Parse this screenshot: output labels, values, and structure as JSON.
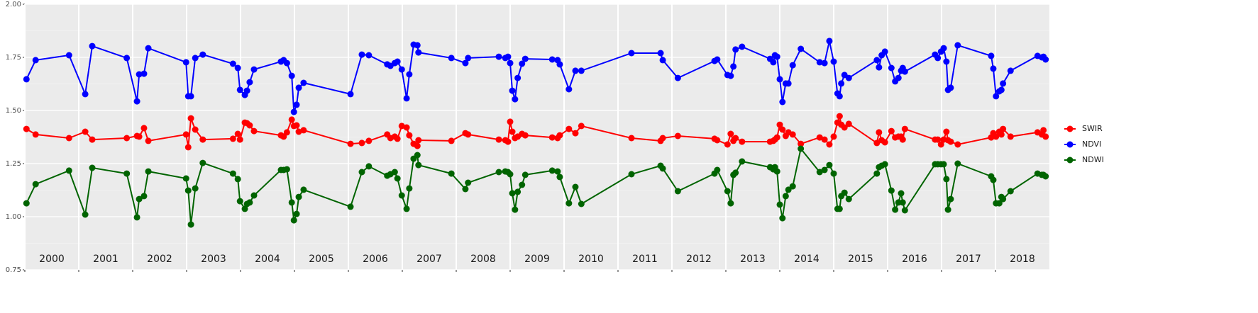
{
  "chart_data": {
    "type": "line",
    "x": [
      2000.03,
      2000.2,
      2000.82,
      2001.12,
      2001.25,
      2001.89,
      2002.08,
      2002.12,
      2002.21,
      2002.29,
      2002.99,
      2003.03,
      2003.08,
      2003.16,
      2003.3,
      2003.86,
      2003.95,
      2003.99,
      2004.08,
      2004.12,
      2004.17,
      2004.25,
      2004.75,
      2004.8,
      2004.86,
      2004.95,
      2004.99,
      2005.04,
      2005.08,
      2005.17,
      2006.04,
      2006.25,
      2006.38,
      2006.72,
      2006.78,
      2006.86,
      2006.91,
      2006.99,
      2007.08,
      2007.13,
      2007.21,
      2007.28,
      2007.3,
      2007.91,
      2008.17,
      2008.22,
      2008.79,
      2008.91,
      2008.96,
      2009.0,
      2009.04,
      2009.09,
      2009.14,
      2009.22,
      2009.28,
      2009.78,
      2009.88,
      2009.92,
      2010.09,
      2010.21,
      2010.32,
      2011.25,
      2011.79,
      2011.83,
      2012.11,
      2012.79,
      2012.84,
      2013.03,
      2013.09,
      2013.14,
      2013.18,
      2013.3,
      2013.82,
      2013.88,
      2013.91,
      2013.95,
      2014.0,
      2014.05,
      2014.11,
      2014.16,
      2014.24,
      2014.39,
      2014.74,
      2014.83,
      2014.92,
      2015.0,
      2015.07,
      2015.11,
      2015.14,
      2015.2,
      2015.28,
      2015.8,
      2015.84,
      2015.89,
      2015.95,
      2016.07,
      2016.14,
      2016.2,
      2016.25,
      2016.28,
      2016.32,
      2016.88,
      2016.93,
      2016.99,
      2017.04,
      2017.09,
      2017.12,
      2017.17,
      2017.3,
      2017.92,
      2017.96,
      2018.01,
      2018.07,
      2018.11,
      2018.14,
      2018.28,
      2018.78,
      2018.86,
      2018.89,
      2018.93
    ],
    "series": [
      {
        "name": "SWIR",
        "color": "#ff0000",
        "values": [
          1.413,
          1.387,
          1.37,
          1.4,
          1.363,
          1.37,
          1.38,
          1.377,
          1.417,
          1.357,
          1.387,
          1.327,
          1.463,
          1.41,
          1.363,
          1.367,
          1.39,
          1.363,
          1.443,
          1.44,
          1.43,
          1.403,
          1.383,
          1.377,
          1.397,
          1.457,
          1.427,
          1.43,
          1.4,
          1.407,
          1.343,
          1.347,
          1.357,
          1.387,
          1.37,
          1.377,
          1.367,
          1.427,
          1.42,
          1.383,
          1.343,
          1.333,
          1.36,
          1.357,
          1.393,
          1.387,
          1.363,
          1.36,
          1.353,
          1.447,
          1.4,
          1.37,
          1.377,
          1.39,
          1.383,
          1.373,
          1.37,
          1.383,
          1.413,
          1.393,
          1.427,
          1.37,
          1.357,
          1.37,
          1.38,
          1.367,
          1.36,
          1.34,
          1.39,
          1.357,
          1.37,
          1.353,
          1.353,
          1.357,
          1.363,
          1.373,
          1.433,
          1.41,
          1.38,
          1.397,
          1.387,
          1.343,
          1.373,
          1.363,
          1.34,
          1.377,
          1.443,
          1.473,
          1.433,
          1.42,
          1.437,
          1.347,
          1.397,
          1.36,
          1.35,
          1.403,
          1.373,
          1.377,
          1.377,
          1.363,
          1.413,
          1.363,
          1.363,
          1.34,
          1.363,
          1.4,
          1.36,
          1.353,
          1.34,
          1.373,
          1.393,
          1.377,
          1.4,
          1.387,
          1.413,
          1.377,
          1.397,
          1.387,
          1.407,
          1.377
        ]
      },
      {
        "name": "NDVI",
        "color": "#0000ff",
        "values": [
          1.647,
          1.737,
          1.76,
          1.577,
          1.803,
          1.747,
          1.543,
          1.67,
          1.673,
          1.793,
          1.727,
          1.567,
          1.567,
          1.747,
          1.763,
          1.72,
          1.7,
          1.597,
          1.573,
          1.593,
          1.633,
          1.693,
          1.73,
          1.737,
          1.723,
          1.663,
          1.493,
          1.527,
          1.607,
          1.63,
          1.577,
          1.763,
          1.76,
          1.717,
          1.71,
          1.723,
          1.73,
          1.693,
          1.557,
          1.67,
          1.81,
          1.807,
          1.773,
          1.747,
          1.723,
          1.747,
          1.753,
          1.747,
          1.753,
          1.723,
          1.593,
          1.553,
          1.653,
          1.72,
          1.743,
          1.74,
          1.737,
          1.717,
          1.6,
          1.687,
          1.687,
          1.77,
          1.77,
          1.737,
          1.653,
          1.733,
          1.74,
          1.667,
          1.663,
          1.707,
          1.787,
          1.8,
          1.743,
          1.727,
          1.76,
          1.753,
          1.647,
          1.54,
          1.627,
          1.627,
          1.713,
          1.79,
          1.727,
          1.723,
          1.827,
          1.73,
          1.58,
          1.567,
          1.627,
          1.667,
          1.653,
          1.737,
          1.703,
          1.76,
          1.777,
          1.7,
          1.637,
          1.653,
          1.687,
          1.7,
          1.683,
          1.763,
          1.747,
          1.777,
          1.793,
          1.73,
          1.597,
          1.607,
          1.807,
          1.757,
          1.697,
          1.567,
          1.59,
          1.597,
          1.627,
          1.687,
          1.757,
          1.75,
          1.753,
          1.74
        ]
      },
      {
        "name": "NDWI",
        "color": "#006400",
        "values": [
          1.063,
          1.153,
          1.217,
          1.01,
          1.23,
          1.203,
          0.997,
          1.083,
          1.097,
          1.213,
          1.18,
          1.123,
          0.963,
          1.133,
          1.253,
          1.203,
          1.177,
          1.073,
          1.037,
          1.06,
          1.067,
          1.1,
          1.22,
          1.22,
          1.223,
          1.067,
          0.983,
          1.013,
          1.093,
          1.127,
          1.047,
          1.21,
          1.237,
          1.193,
          1.2,
          1.21,
          1.18,
          1.1,
          1.037,
          1.133,
          1.273,
          1.29,
          1.243,
          1.203,
          1.13,
          1.16,
          1.21,
          1.213,
          1.21,
          1.2,
          1.11,
          1.033,
          1.117,
          1.15,
          1.197,
          1.217,
          1.213,
          1.187,
          1.063,
          1.14,
          1.06,
          1.2,
          1.24,
          1.227,
          1.12,
          1.203,
          1.22,
          1.12,
          1.063,
          1.197,
          1.207,
          1.26,
          1.233,
          1.223,
          1.233,
          1.213,
          1.057,
          0.993,
          1.097,
          1.127,
          1.143,
          1.32,
          1.21,
          1.22,
          1.243,
          1.203,
          1.037,
          1.037,
          1.097,
          1.113,
          1.083,
          1.203,
          1.233,
          1.24,
          1.247,
          1.123,
          1.033,
          1.067,
          1.11,
          1.067,
          1.03,
          1.247,
          1.247,
          1.247,
          1.247,
          1.177,
          1.033,
          1.083,
          1.25,
          1.19,
          1.173,
          1.063,
          1.063,
          1.093,
          1.083,
          1.12,
          1.203,
          1.197,
          1.197,
          1.19
        ]
      }
    ],
    "xlim": [
      2000,
      2019
    ],
    "xticks": [
      2000,
      2001,
      2002,
      2003,
      2004,
      2005,
      2006,
      2007,
      2008,
      2009,
      2010,
      2011,
      2012,
      2013,
      2014,
      2015,
      2016,
      2017,
      2018
    ],
    "ylim": [
      0.75,
      2.0
    ],
    "yticks": [
      {
        "value": 0.75,
        "label": "0.75"
      },
      {
        "value": 1.0,
        "label": "1.00"
      },
      {
        "value": 1.25,
        "label": "1.25"
      },
      {
        "value": 1.5,
        "label": "1.50"
      },
      {
        "value": 1.75,
        "label": "1.75"
      },
      {
        "value": 2.0,
        "label": "2.00"
      }
    ],
    "annotations": [
      "2000",
      "2001",
      "2002",
      "2003",
      "2004",
      "2005",
      "2006",
      "2007",
      "2008",
      "2009",
      "2010",
      "2011",
      "2012",
      "2013",
      "2014",
      "2015",
      "2016",
      "2017",
      "2018"
    ],
    "grid": true,
    "legend": "right"
  }
}
